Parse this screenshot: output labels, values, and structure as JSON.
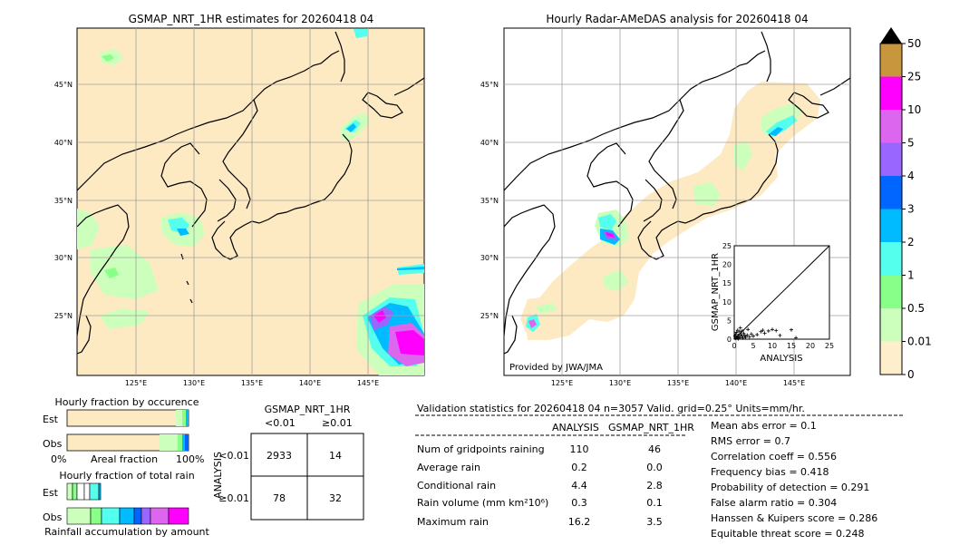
{
  "left_map": {
    "title": "GSMAP_NRT_1HR estimates for 20260418 04",
    "lat_labels": [
      "45°N",
      "40°N",
      "35°N",
      "30°N",
      "25°N"
    ],
    "lon_labels": [
      "125°E",
      "130°E",
      "135°E",
      "140°E",
      "145°E"
    ]
  },
  "right_map": {
    "title": "Hourly Radar-AMeDAS analysis for 20260418 04",
    "lat_labels": [
      "45°N",
      "40°N",
      "35°N",
      "30°N",
      "25°N"
    ],
    "lon_labels": [
      "125°E",
      "130°E",
      "135°E",
      "140°E",
      "145°E"
    ],
    "credit": "Provided by JWA/JMA"
  },
  "colorbar": {
    "labels": [
      "50",
      "25",
      "10",
      "5",
      "4",
      "3",
      "2",
      "1",
      "0.5",
      "0.01",
      "0"
    ],
    "colors": [
      "#c8963c",
      "#ff00ff",
      "#dd66ee",
      "#9966ff",
      "#0066ff",
      "#00bbff",
      "#55ffee",
      "#88ff88",
      "#ccffbb",
      "#ffeecc"
    ]
  },
  "fraction_occurrence": {
    "title": "Hourly fraction by occurence",
    "est_label": "Est",
    "obs_label": "Obs",
    "axis_left": "0%",
    "axis_mid": "Areal fraction",
    "axis_right": "100%"
  },
  "fraction_total": {
    "title": "Hourly fraction of total rain",
    "est_label": "Est",
    "obs_label": "Obs",
    "axis_label": "Rainfall accumulation by amount"
  },
  "contingency": {
    "title": "GSMAP_NRT_1HR",
    "col_labels": [
      "<0.01",
      "≥0.01"
    ],
    "row_axis": "ANALYSIS",
    "row_labels": [
      "<0.01",
      "≥0.01"
    ],
    "cells": [
      [
        "2933",
        "14"
      ],
      [
        "78",
        "32"
      ]
    ]
  },
  "validation": {
    "header": "Validation statistics for 20260418 04  n=3057 Valid. grid=0.25° Units=mm/hr.",
    "col_analysis": "ANALYSIS",
    "col_gsmap": "GSMAP_NRT_1HR",
    "rows": [
      {
        "label": "Num of gridpoints raining",
        "analysis": "110",
        "gsmap": "46"
      },
      {
        "label": "Average rain",
        "analysis": "0.2",
        "gsmap": "0.0"
      },
      {
        "label": "Conditional rain",
        "analysis": "4.4",
        "gsmap": "2.8"
      },
      {
        "label": "Rain volume (mm km²10⁶)",
        "analysis": "0.3",
        "gsmap": "0.1"
      },
      {
        "label": "Maximum rain",
        "analysis": "16.2",
        "gsmap": "3.5"
      }
    ],
    "scores": [
      "Mean abs error =    0.1",
      "RMS error =    0.7",
      "Correlation coeff =  0.556",
      "Frequency bias =  0.418",
      "Probability of detection =  0.291",
      "False alarm ratio =  0.304",
      "Hanssen & Kuipers score =  0.286",
      "Equitable threat score =  0.248"
    ]
  },
  "chart_data": {
    "type": "scatter",
    "xlabel": "ANALYSIS",
    "ylabel": "GSMAP_NRT_1HR",
    "xlim": [
      0,
      25
    ],
    "ylim": [
      0,
      25
    ],
    "x_ticks": [
      "0",
      "5",
      "10",
      "15",
      "20",
      "25"
    ],
    "y_ticks": [
      "0",
      "5",
      "10",
      "15",
      "20",
      "25"
    ],
    "points": [
      [
        0.3,
        0.2
      ],
      [
        0.5,
        0.5
      ],
      [
        0.8,
        0.3
      ],
      [
        1.0,
        1.0
      ],
      [
        1.2,
        0.6
      ],
      [
        1.5,
        0.4
      ],
      [
        1.8,
        1.2
      ],
      [
        2.0,
        0.8
      ],
      [
        2.3,
        0.3
      ],
      [
        2.5,
        1.5
      ],
      [
        2.8,
        0.9
      ],
      [
        3.0,
        0.5
      ],
      [
        0.6,
        1.8
      ],
      [
        0.9,
        2.4
      ],
      [
        1.4,
        2.0
      ],
      [
        3.4,
        1.1
      ],
      [
        4.0,
        0.6
      ],
      [
        4.5,
        1.4
      ],
      [
        5.0,
        0.8
      ],
      [
        6.0,
        1.2
      ],
      [
        7.0,
        2.0
      ],
      [
        7.5,
        2.4
      ],
      [
        8.0,
        1.6
      ],
      [
        9.0,
        2.2
      ],
      [
        10.0,
        2.6
      ],
      [
        11.0,
        2.3
      ],
      [
        12.0,
        1.0
      ],
      [
        15.0,
        2.5
      ],
      [
        16.2,
        0.4
      ],
      [
        0.2,
        0.9
      ],
      [
        1.1,
        0.1
      ],
      [
        2.1,
        2.2
      ],
      [
        3.6,
        2.6
      ],
      [
        1.6,
        3.0
      ],
      [
        0.4,
        1.4
      ]
    ]
  }
}
